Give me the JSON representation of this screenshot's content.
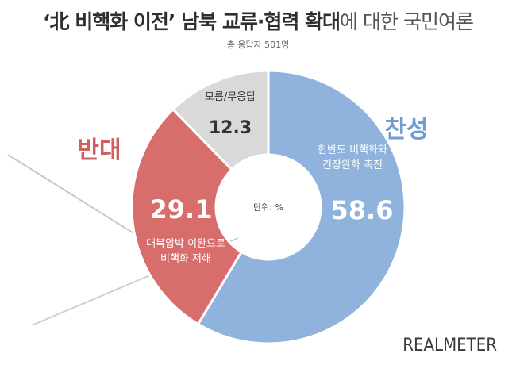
{
  "title": {
    "bold": "‘北 비핵화 이전’ 남북 교류·협력 확대",
    "light": "에 대한 국민여론"
  },
  "sample_note": "총 응답자 501명",
  "unit_label": "단위: %",
  "brand": "REALMETER",
  "colors": {
    "agree": "#8fb3dd",
    "oppose": "#d86e6c",
    "unknown": "#d9d9d9",
    "agree_text": "#6e9ed3",
    "oppose_text": "#d0605e"
  },
  "chart_data": {
    "type": "pie",
    "style": "donut",
    "unit": "%",
    "slices": [
      {
        "label": "찬성",
        "value": 58.6,
        "value_label": "58.6",
        "description": [
          "한반도 비핵화와",
          "긴장완화 촉진"
        ],
        "color": "#8fb3dd"
      },
      {
        "label": "반대",
        "value": 29.1,
        "value_label": "29.1",
        "description": [
          "대북압박 이완으로",
          "비핵화 저해"
        ],
        "color": "#d86e6c"
      },
      {
        "label": "모름/무응답",
        "value": 12.3,
        "value_label": "12.3",
        "description": [],
        "color": "#d9d9d9"
      }
    ]
  }
}
